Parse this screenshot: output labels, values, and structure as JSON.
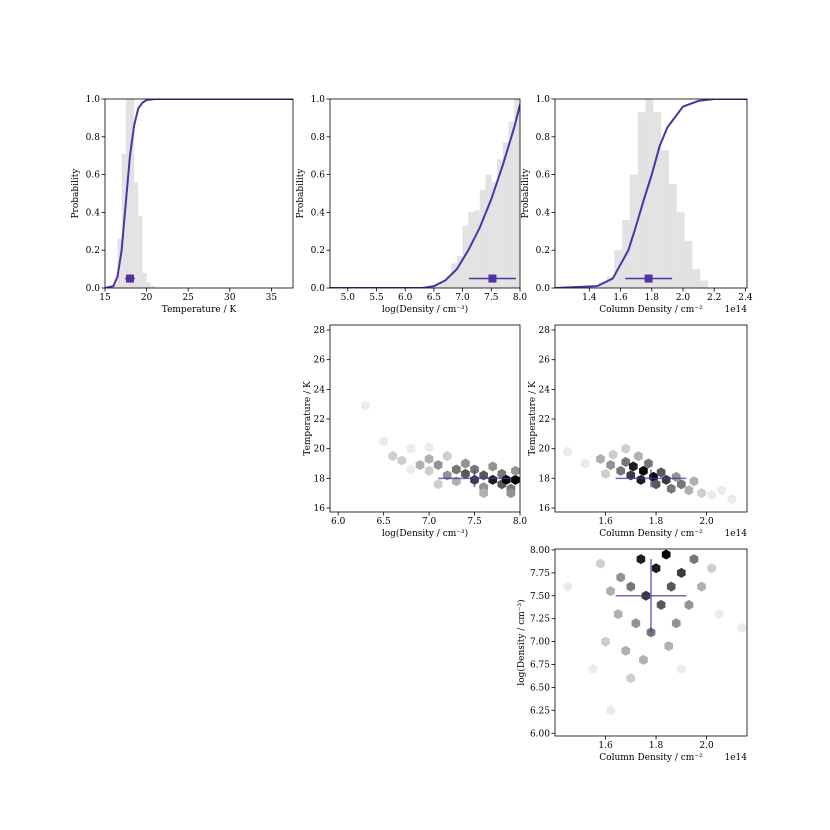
{
  "chart_data": [
    {
      "type": "histogram",
      "xlabel": "Temperature / K",
      "ylabel": "Probability",
      "xlim": [
        15,
        37.6
      ],
      "ylim": [
        0,
        1
      ],
      "xticks": [
        15,
        20,
        25,
        30,
        35
      ],
      "yticks": [
        {
          "value": 0,
          "label": "0.0"
        },
        0.2,
        0.4,
        0.6,
        0.8,
        {
          "value": 1,
          "label": "1.0"
        }
      ],
      "bins": [
        16,
        16.5,
        17,
        17.5,
        18,
        18.5,
        19,
        19.5,
        20,
        20.5,
        21
      ],
      "counts": [
        0.02,
        0.26,
        0.71,
        1.0,
        1.0,
        0.56,
        0.38,
        0.08,
        0.03,
        0.01
      ],
      "hist_color": "#e2e2e2",
      "line_color": "#5230a6",
      "cdf": {
        "x": [
          15,
          16,
          16.5,
          17,
          17.5,
          18,
          18.5,
          19,
          19.5,
          20,
          21,
          37.6
        ],
        "y": [
          0,
          0.01,
          0.06,
          0.2,
          0.45,
          0.7,
          0.86,
          0.95,
          0.98,
          0.995,
          1,
          1
        ]
      },
      "marker": {
        "x": 18.0,
        "xerr": 0.6,
        "y": 0.05
      }
    },
    {
      "type": "histogram",
      "xlabel": "log(Density / cm⁻³)",
      "ylabel": "Probability",
      "xlim": [
        4.69,
        8.0
      ],
      "ylim": [
        0,
        1
      ],
      "xticks": [
        {
          "value": 5,
          "label": "5.0"
        },
        5.5,
        {
          "value": 6,
          "label": "6.0"
        },
        6.5,
        {
          "value": 7,
          "label": "7.0"
        },
        7.5,
        {
          "value": 8,
          "label": "8.0"
        }
      ],
      "yticks": [
        {
          "value": 0,
          "label": "0.0"
        },
        0.2,
        0.4,
        0.6,
        0.8,
        {
          "value": 1,
          "label": "1.0"
        }
      ],
      "bins": [
        6.5,
        6.6,
        6.7,
        6.8,
        6.9,
        7.0,
        7.1,
        7.2,
        7.3,
        7.4,
        7.5,
        7.6,
        7.7,
        7.8,
        7.9,
        8.0
      ],
      "counts": [
        0.01,
        0.03,
        0.06,
        0.13,
        0.17,
        0.33,
        0.4,
        0.41,
        0.52,
        0.6,
        0.56,
        0.68,
        0.77,
        0.88,
        1.0
      ],
      "hist_color": "#e2e2e2",
      "line_color": "#5230a6",
      "cdf": {
        "x": [
          4.69,
          6.3,
          6.5,
          6.7,
          6.9,
          7.1,
          7.3,
          7.5,
          7.7,
          7.9,
          8.0
        ],
        "y": [
          0,
          0,
          0.01,
          0.04,
          0.1,
          0.2,
          0.32,
          0.47,
          0.65,
          0.85,
          0.97
        ]
      },
      "marker": {
        "x": 7.52,
        "xerr": 0.41,
        "y": 0.05
      }
    },
    {
      "type": "histogram",
      "xlabel": "Column Density / cm⁻²",
      "ylabel": "Probability",
      "x_offset_label": "1e14",
      "xlim": [
        1.18,
        2.41
      ],
      "ylim": [
        0,
        1
      ],
      "xticks": [
        1.4,
        1.6,
        1.8,
        {
          "value": 2,
          "label": "2.0"
        },
        2.2,
        2.4
      ],
      "yticks": [
        {
          "value": 0,
          "label": "0.0"
        },
        0.2,
        0.4,
        0.6,
        0.8,
        {
          "value": 1,
          "label": "1.0"
        }
      ],
      "bins": [
        1.46,
        1.51,
        1.56,
        1.61,
        1.66,
        1.71,
        1.76,
        1.81,
        1.86,
        1.91,
        1.96,
        2.01,
        2.06,
        2.11,
        2.16
      ],
      "counts": [
        0.03,
        0.06,
        0.2,
        0.36,
        0.6,
        0.93,
        1.0,
        0.93,
        0.73,
        0.55,
        0.4,
        0.25,
        0.1,
        0.04
      ],
      "hist_color": "#e2e2e2",
      "line_color": "#5230a6",
      "cdf": {
        "x": [
          1.18,
          1.45,
          1.55,
          1.65,
          1.7,
          1.75,
          1.8,
          1.85,
          1.9,
          2.0,
          2.1,
          2.2,
          2.41
        ],
        "y": [
          0,
          0.01,
          0.05,
          0.2,
          0.33,
          0.47,
          0.6,
          0.75,
          0.85,
          0.96,
          0.99,
          1,
          1
        ]
      },
      "marker": {
        "x": 1.78,
        "xerr": 0.15,
        "y": 0.05
      }
    },
    {
      "type": "hexbin",
      "xlabel": "log(Density / cm⁻³)",
      "ylabel": "Temperature / K",
      "xlim": [
        5.91,
        8.0
      ],
      "ylim": [
        15.73,
        28.34
      ],
      "xticks": [
        {
          "value": 6,
          "label": "6.0"
        },
        6.5,
        {
          "value": 7,
          "label": "7.0"
        },
        7.5,
        {
          "value": 8,
          "label": "8.0"
        }
      ],
      "yticks": [
        16,
        18,
        20,
        22,
        24,
        26,
        28
      ],
      "hex": {
        "x": [
          6.3,
          6.5,
          6.6,
          6.7,
          6.8,
          6.9,
          7.0,
          7.0,
          7.1,
          7.2,
          7.2,
          7.3,
          7.3,
          7.4,
          7.4,
          7.5,
          7.5,
          7.6,
          7.6,
          7.7,
          7.7,
          7.8,
          7.8,
          7.85,
          7.9,
          7.95,
          7.95,
          6.8,
          7.1,
          7.6,
          7.9,
          7.0
        ],
        "y": [
          22.9,
          20.5,
          19.5,
          19.2,
          20.0,
          18.9,
          19.3,
          18.5,
          18.9,
          18.2,
          19.5,
          18.6,
          17.8,
          18.3,
          19.0,
          17.9,
          18.6,
          18.2,
          17.4,
          17.9,
          18.8,
          17.6,
          18.3,
          17.9,
          17.3,
          17.9,
          18.5,
          18.6,
          17.6,
          17.0,
          17.0,
          20.1
        ],
        "counts": [
          1,
          1,
          2,
          2,
          1,
          3,
          3,
          2,
          4,
          4,
          2,
          5,
          3,
          6,
          4,
          7,
          5,
          6,
          4,
          8,
          4,
          6,
          5,
          9,
          5,
          9,
          4,
          1,
          2,
          3,
          4,
          1
        ]
      },
      "line_color": "#5230a6",
      "marker": {
        "x": 7.5,
        "xerr": 0.4,
        "y": 18.0,
        "yerr": 0.6
      }
    },
    {
      "type": "hexbin",
      "xlabel": "Column Density / cm⁻²",
      "ylabel": "Temperature / K",
      "x_offset_label": "1e14",
      "xlim": [
        1.4,
        2.16
      ],
      "ylim": [
        15.73,
        28.34
      ],
      "xticks": [
        1.6,
        1.8,
        {
          "value": 2,
          "label": "2.0"
        }
      ],
      "yticks": [
        16,
        18,
        20,
        22,
        24,
        26,
        28
      ],
      "hex": {
        "x": [
          1.45,
          1.52,
          1.58,
          1.62,
          1.63,
          1.66,
          1.68,
          1.7,
          1.71,
          1.74,
          1.75,
          1.77,
          1.79,
          1.8,
          1.82,
          1.84,
          1.86,
          1.88,
          1.9,
          1.93,
          1.95,
          1.98,
          2.02,
          2.06,
          1.68,
          1.73,
          1.6,
          2.1
        ],
        "y": [
          19.8,
          19.0,
          19.3,
          18.9,
          19.6,
          18.5,
          19.1,
          18.2,
          18.8,
          17.9,
          18.5,
          19.0,
          18.1,
          17.6,
          18.4,
          17.9,
          17.3,
          18.1,
          17.6,
          17.2,
          17.8,
          17.0,
          16.9,
          17.2,
          20.0,
          19.5,
          18.3,
          16.6
        ],
        "counts": [
          1,
          1,
          3,
          4,
          2,
          5,
          5,
          7,
          8,
          8,
          9,
          5,
          9,
          6,
          6,
          7,
          5,
          4,
          5,
          3,
          3,
          2,
          1,
          1,
          2,
          3,
          2,
          1
        ]
      },
      "line_color": "#5230a6",
      "marker": {
        "x": 1.78,
        "xerr": 0.14,
        "y": 18.0,
        "yerr": 0.6
      }
    },
    {
      "type": "hexbin",
      "xlabel": "Column Density / cm⁻²",
      "ylabel": "log(Density / cm⁻³)",
      "x_offset_label": "1e14",
      "xlim": [
        1.4,
        2.16
      ],
      "ylim": [
        5.97,
        8.01
      ],
      "xticks": [
        1.6,
        1.8,
        {
          "value": 2,
          "label": "2.0"
        }
      ],
      "yticks": [
        {
          "value": 6,
          "label": "6.00"
        },
        6.25,
        {
          "value": 6.5,
          "label": "6.50"
        },
        6.75,
        {
          "value": 7,
          "label": "7.00"
        },
        7.25,
        {
          "value": 7.5,
          "label": "7.50"
        },
        7.75,
        {
          "value": 8,
          "label": "8.00"
        }
      ],
      "hex": {
        "x": [
          1.62,
          1.55,
          1.6,
          1.65,
          1.68,
          1.7,
          1.72,
          1.74,
          1.76,
          1.78,
          1.8,
          1.82,
          1.84,
          1.86,
          1.88,
          1.9,
          1.93,
          1.95,
          1.98,
          2.02,
          2.05,
          1.66,
          1.7,
          1.75,
          1.85,
          1.62,
          1.58,
          2.14,
          1.45,
          1.9
        ],
        "y": [
          6.25,
          6.7,
          7.0,
          7.3,
          6.9,
          7.6,
          7.2,
          7.9,
          7.5,
          7.1,
          7.8,
          7.4,
          7.95,
          7.6,
          7.2,
          7.75,
          7.4,
          7.9,
          7.6,
          7.8,
          7.3,
          7.7,
          6.6,
          6.8,
          6.95,
          7.55,
          7.85,
          7.15,
          7.6,
          6.7
        ],
        "counts": [
          1,
          1,
          2,
          3,
          3,
          5,
          4,
          8,
          7,
          5,
          8,
          6,
          9,
          6,
          4,
          7,
          4,
          5,
          3,
          2,
          1,
          4,
          2,
          3,
          3,
          3,
          2,
          1,
          1,
          1
        ]
      },
      "line_color": "#5230a6",
      "marker": {
        "x": 1.78,
        "xerr": 0.14,
        "y": 7.5,
        "yerr": 0.4
      }
    }
  ]
}
